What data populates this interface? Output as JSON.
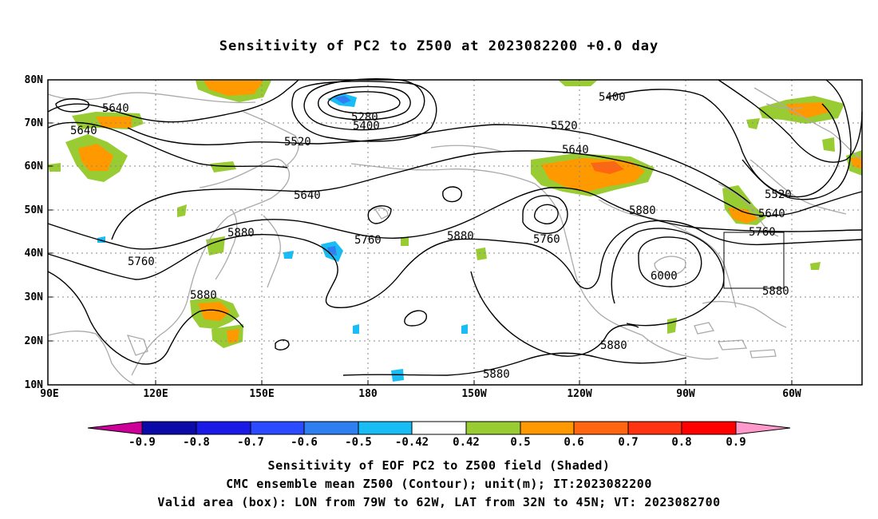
{
  "title": "Sensitivity of PC2 to Z500 at 2023082200 +0.0 day",
  "lat_labels": [
    "80N",
    "70N",
    "60N",
    "50N",
    "40N",
    "30N",
    "20N",
    "10N"
  ],
  "lon_labels": [
    "90E",
    "120E",
    "150E",
    "180",
    "150W",
    "120W",
    "90W",
    "60W"
  ],
  "contour_labels": [
    {
      "text": "5640"
    },
    {
      "text": "5640"
    },
    {
      "text": "5400"
    },
    {
      "text": "5280"
    },
    {
      "text": "5400"
    },
    {
      "text": "5520"
    },
    {
      "text": "5520"
    },
    {
      "text": "5640"
    },
    {
      "text": "5640"
    },
    {
      "text": "5760"
    },
    {
      "text": "5760"
    },
    {
      "text": "5880"
    },
    {
      "text": "5880"
    },
    {
      "text": "5760"
    },
    {
      "text": "5880"
    },
    {
      "text": "6000"
    },
    {
      "text": "5880"
    },
    {
      "text": "5880"
    },
    {
      "text": "5880"
    },
    {
      "text": "5520"
    },
    {
      "text": "5640"
    },
    {
      "text": "5760"
    },
    {
      "text": "5880"
    }
  ],
  "colorbar": {
    "labels": [
      "-0.9",
      "-0.8",
      "-0.7",
      "-0.6",
      "-0.5",
      "-0.42",
      "0.42",
      "0.5",
      "0.6",
      "0.7",
      "0.8",
      "0.9"
    ],
    "colors": [
      "#0a0aa8",
      "#1a1ae6",
      "#2a4bff",
      "#2f7ff2",
      "#19bdf5",
      "#ffffff",
      "#99cc33",
      "#ff9900",
      "#ff6611",
      "#ff3311",
      "#ff0000"
    ],
    "low_color": "#cc0099",
    "high_color": "#ff99cc"
  },
  "captions": [
    "Sensitivity of EOF PC2 to Z500 field (Shaded)",
    "CMC ensemble mean Z500 (Contour); unit(m); IT:2023082200",
    "Valid area (box): LON from 79W to 62W, LAT from 32N to 45N; VT: 2023082700"
  ],
  "colors": {
    "green": "#99cc33",
    "orange": "#ff9900",
    "light_blue": "#19bdf5",
    "blue": "#2f7ff2",
    "coast": "#aaaaaa",
    "grid": "#888888"
  }
}
